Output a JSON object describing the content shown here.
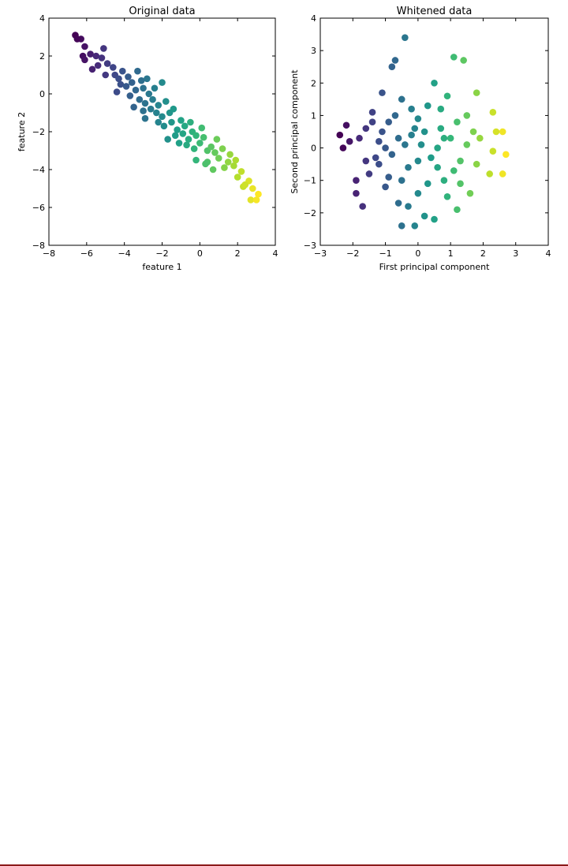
{
  "chart_data": [
    {
      "type": "scatter",
      "title": "Original data",
      "xlabel": "feature 1",
      "ylabel": "feature 2",
      "xlim": [
        -8,
        4
      ],
      "ylim": [
        -8,
        4
      ],
      "xticks": [
        "−8",
        "−6",
        "−4",
        "−2",
        "0",
        "2",
        "4"
      ],
      "yticks": [
        "−8",
        "−6",
        "−4",
        "−2",
        "0",
        "2",
        "4"
      ],
      "colormap": "viridis",
      "grid": false,
      "points": [
        {
          "x": -6.6,
          "y": 3.1
        },
        {
          "x": -6.3,
          "y": 2.9
        },
        {
          "x": -6.5,
          "y": 2.9
        },
        {
          "x": -6.1,
          "y": 2.5
        },
        {
          "x": -6.2,
          "y": 2.0
        },
        {
          "x": -6.1,
          "y": 1.8
        },
        {
          "x": -5.8,
          "y": 2.1
        },
        {
          "x": -5.5,
          "y": 2.0
        },
        {
          "x": -5.1,
          "y": 2.4
        },
        {
          "x": -5.2,
          "y": 1.9
        },
        {
          "x": -5.4,
          "y": 1.5
        },
        {
          "x": -5.7,
          "y": 1.3
        },
        {
          "x": -4.9,
          "y": 1.6
        },
        {
          "x": -4.6,
          "y": 1.4
        },
        {
          "x": -4.5,
          "y": 1.0
        },
        {
          "x": -5.0,
          "y": 1.0
        },
        {
          "x": -4.3,
          "y": 0.8
        },
        {
          "x": -4.1,
          "y": 1.2
        },
        {
          "x": -4.2,
          "y": 0.5
        },
        {
          "x": -3.9,
          "y": 0.4
        },
        {
          "x": -3.8,
          "y": 0.9
        },
        {
          "x": -3.6,
          "y": 0.6
        },
        {
          "x": -3.7,
          "y": -0.1
        },
        {
          "x": -3.4,
          "y": 0.2
        },
        {
          "x": -3.3,
          "y": 1.2
        },
        {
          "x": -3.1,
          "y": 0.7
        },
        {
          "x": -3.2,
          "y": -0.3
        },
        {
          "x": -3.0,
          "y": 0.3
        },
        {
          "x": -2.9,
          "y": -0.5
        },
        {
          "x": -2.7,
          "y": 0.0
        },
        {
          "x": -2.8,
          "y": 0.8
        },
        {
          "x": -2.6,
          "y": -0.8
        },
        {
          "x": -2.5,
          "y": -0.3
        },
        {
          "x": -2.3,
          "y": -1.0
        },
        {
          "x": -2.4,
          "y": 0.3
        },
        {
          "x": -2.2,
          "y": -0.6
        },
        {
          "x": -2.0,
          "y": 0.6
        },
        {
          "x": -2.0,
          "y": -1.2
        },
        {
          "x": -1.8,
          "y": -0.4
        },
        {
          "x": -1.9,
          "y": -1.7
        },
        {
          "x": -1.6,
          "y": -1.0
        },
        {
          "x": -1.5,
          "y": -1.5
        },
        {
          "x": -1.4,
          "y": -0.8
        },
        {
          "x": -1.2,
          "y": -1.9
        },
        {
          "x": -1.0,
          "y": -1.4
        },
        {
          "x": -0.9,
          "y": -2.1
        },
        {
          "x": -0.8,
          "y": -1.7
        },
        {
          "x": -0.6,
          "y": -2.4
        },
        {
          "x": -0.5,
          "y": -1.5
        },
        {
          "x": -0.4,
          "y": -2.0
        },
        {
          "x": -0.3,
          "y": -2.9
        },
        {
          "x": -0.2,
          "y": -2.2
        },
        {
          "x": 0.0,
          "y": -2.6
        },
        {
          "x": 0.2,
          "y": -2.3
        },
        {
          "x": 0.4,
          "y": -3.0
        },
        {
          "x": 0.6,
          "y": -2.8
        },
        {
          "x": 0.8,
          "y": -3.1
        },
        {
          "x": 0.4,
          "y": -3.6
        },
        {
          "x": 1.0,
          "y": -3.4
        },
        {
          "x": 1.2,
          "y": -2.9
        },
        {
          "x": 0.7,
          "y": -4.0
        },
        {
          "x": 1.3,
          "y": -3.9
        },
        {
          "x": 1.5,
          "y": -3.6
        },
        {
          "x": 1.8,
          "y": -3.8
        },
        {
          "x": 1.6,
          "y": -3.2
        },
        {
          "x": 2.0,
          "y": -4.4
        },
        {
          "x": 1.9,
          "y": -3.5
        },
        {
          "x": 2.2,
          "y": -4.1
        },
        {
          "x": 2.3,
          "y": -4.9
        },
        {
          "x": 2.6,
          "y": -4.6
        },
        {
          "x": 2.4,
          "y": -4.8
        },
        {
          "x": 2.8,
          "y": -5.0
        },
        {
          "x": 2.7,
          "y": -5.6
        },
        {
          "x": 3.0,
          "y": -5.6
        },
        {
          "x": 3.1,
          "y": -5.3
        },
        {
          "x": -0.2,
          "y": -3.5
        },
        {
          "x": 0.3,
          "y": -3.7
        },
        {
          "x": -1.1,
          "y": -2.6
        },
        {
          "x": -2.9,
          "y": -1.3
        },
        {
          "x": -3.5,
          "y": -0.7
        },
        {
          "x": -1.3,
          "y": -2.2
        },
        {
          "x": -0.7,
          "y": -2.7
        },
        {
          "x": 0.9,
          "y": -2.4
        },
        {
          "x": -4.4,
          "y": 0.1
        },
        {
          "x": -2.2,
          "y": -1.5
        },
        {
          "x": -1.7,
          "y": -2.4
        },
        {
          "x": 0.1,
          "y": -1.8
        },
        {
          "x": -3.0,
          "y": -0.9
        }
      ]
    },
    {
      "type": "scatter",
      "title": "Whitened data",
      "xlabel": "First principal component",
      "ylabel": "Second principal component",
      "xlim": [
        -3,
        4
      ],
      "ylim": [
        -3,
        4
      ],
      "xticks": [
        "−3",
        "−2",
        "−1",
        "0",
        "1",
        "2",
        "3",
        "4"
      ],
      "yticks": [
        "−3",
        "−2",
        "−1",
        "0",
        "1",
        "2",
        "3",
        "4"
      ],
      "colormap": "viridis",
      "grid": false,
      "points": [
        {
          "x": -2.4,
          "y": 0.4
        },
        {
          "x": -2.2,
          "y": 0.7
        },
        {
          "x": -2.3,
          "y": 0.0
        },
        {
          "x": -2.1,
          "y": 0.2
        },
        {
          "x": -1.9,
          "y": -1.0
        },
        {
          "x": -1.9,
          "y": -1.4
        },
        {
          "x": -1.7,
          "y": -1.8
        },
        {
          "x": -1.8,
          "y": 0.3
        },
        {
          "x": -1.6,
          "y": 0.6
        },
        {
          "x": -1.5,
          "y": -0.8
        },
        {
          "x": -1.4,
          "y": 1.1
        },
        {
          "x": -1.2,
          "y": 0.2
        },
        {
          "x": -1.2,
          "y": -0.5
        },
        {
          "x": -1.1,
          "y": 1.7
        },
        {
          "x": -1.0,
          "y": -1.2
        },
        {
          "x": -0.9,
          "y": 0.8
        },
        {
          "x": -0.8,
          "y": 2.5
        },
        {
          "x": -0.7,
          "y": 2.7
        },
        {
          "x": -0.6,
          "y": -1.7
        },
        {
          "x": -0.5,
          "y": 1.5
        },
        {
          "x": -0.4,
          "y": 3.4
        },
        {
          "x": -0.5,
          "y": -2.4
        },
        {
          "x": -0.3,
          "y": -1.8
        },
        {
          "x": -0.2,
          "y": 0.4
        },
        {
          "x": -0.1,
          "y": -2.4
        },
        {
          "x": 0.0,
          "y": 0.9
        },
        {
          "x": 0.0,
          "y": -1.4
        },
        {
          "x": 0.2,
          "y": -2.1
        },
        {
          "x": 0.3,
          "y": 1.3
        },
        {
          "x": 0.5,
          "y": 2.0
        },
        {
          "x": 0.5,
          "y": -2.2
        },
        {
          "x": 0.6,
          "y": -0.6
        },
        {
          "x": 0.7,
          "y": 0.6
        },
        {
          "x": 0.8,
          "y": -1.0
        },
        {
          "x": 0.9,
          "y": 1.6
        },
        {
          "x": 1.0,
          "y": 0.3
        },
        {
          "x": 1.1,
          "y": 2.8
        },
        {
          "x": 1.2,
          "y": -1.9
        },
        {
          "x": 1.3,
          "y": -0.4
        },
        {
          "x": 1.4,
          "y": 2.7
        },
        {
          "x": 1.5,
          "y": 1.0
        },
        {
          "x": 1.6,
          "y": -1.4
        },
        {
          "x": 1.7,
          "y": 0.5
        },
        {
          "x": 1.8,
          "y": 1.7
        },
        {
          "x": 1.9,
          "y": 0.3
        },
        {
          "x": 2.2,
          "y": -0.8
        },
        {
          "x": 2.3,
          "y": 1.1
        },
        {
          "x": 2.3,
          "y": -0.1
        },
        {
          "x": 2.4,
          "y": 0.5
        },
        {
          "x": 2.6,
          "y": -0.8
        },
        {
          "x": 2.6,
          "y": 0.5
        },
        {
          "x": 2.7,
          "y": -0.2
        },
        {
          "x": -1.0,
          "y": 0.0
        },
        {
          "x": -0.6,
          "y": 0.3
        },
        {
          "x": -0.3,
          "y": -0.6
        },
        {
          "x": 0.1,
          "y": 0.1
        },
        {
          "x": 0.4,
          "y": -0.3
        },
        {
          "x": -0.8,
          "y": -0.2
        },
        {
          "x": 0.2,
          "y": 0.5
        },
        {
          "x": -0.5,
          "y": -1.0
        },
        {
          "x": 1.1,
          "y": -0.7
        },
        {
          "x": -1.3,
          "y": -0.3
        },
        {
          "x": 0.7,
          "y": 1.2
        },
        {
          "x": -0.2,
          "y": 1.2
        },
        {
          "x": 1.5,
          "y": 0.1
        },
        {
          "x": -1.6,
          "y": -0.4
        },
        {
          "x": 0.9,
          "y": -1.5
        },
        {
          "x": -0.9,
          "y": -0.9
        },
        {
          "x": 0.3,
          "y": -1.1
        },
        {
          "x": -0.1,
          "y": 0.6
        },
        {
          "x": 1.2,
          "y": 0.8
        },
        {
          "x": -1.1,
          "y": 0.5
        },
        {
          "x": 0.6,
          "y": 0.0
        },
        {
          "x": -0.4,
          "y": 0.1
        },
        {
          "x": 1.8,
          "y": -0.5
        },
        {
          "x": -1.4,
          "y": 0.8
        },
        {
          "x": 0.0,
          "y": -0.4
        },
        {
          "x": 0.8,
          "y": 0.3
        },
        {
          "x": -0.7,
          "y": 1.0
        },
        {
          "x": 1.3,
          "y": -1.1
        }
      ]
    }
  ]
}
